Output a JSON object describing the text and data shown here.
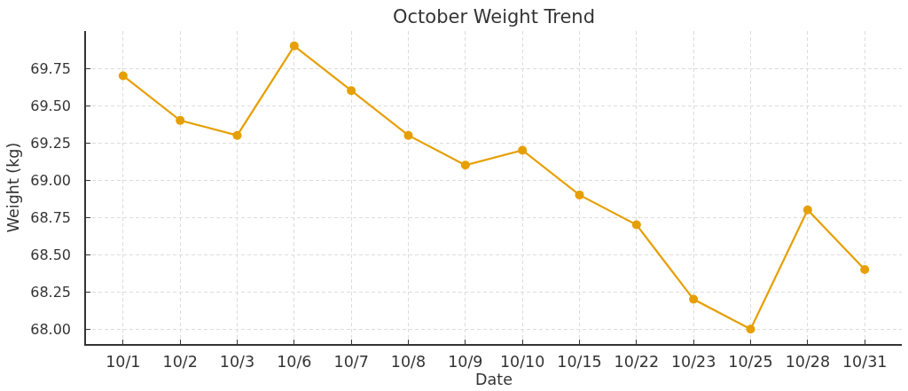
{
  "chart_data": {
    "type": "line",
    "title": "October Weight Trend",
    "xlabel": "Date",
    "ylabel": "Weight (kg)",
    "categories": [
      "10/1",
      "10/2",
      "10/3",
      "10/6",
      "10/7",
      "10/8",
      "10/9",
      "10/10",
      "10/15",
      "10/22",
      "10/23",
      "10/25",
      "10/28",
      "10/31"
    ],
    "series": [
      {
        "color": "#e69f00",
        "values": [
          69.7,
          69.4,
          69.3,
          69.9,
          69.6,
          69.3,
          69.1,
          69.2,
          68.9,
          68.7,
          68.2,
          68.0,
          68.8,
          68.4
        ]
      }
    ],
    "ylim": [
      67.9,
      70.0
    ],
    "yticks": [
      {
        "value": 68.0,
        "label": "68.00"
      },
      {
        "value": 68.25,
        "label": "68.25"
      },
      {
        "value": 68.5,
        "label": "68.50"
      },
      {
        "value": 68.75,
        "label": "68.75"
      },
      {
        "value": 69.0,
        "label": "69.00"
      },
      {
        "value": 69.25,
        "label": "69.25"
      },
      {
        "value": 69.5,
        "label": "69.50"
      },
      {
        "value": 69.75,
        "label": "69.75"
      }
    ],
    "grid": true,
    "marker": "circle",
    "line_style": "solid"
  }
}
